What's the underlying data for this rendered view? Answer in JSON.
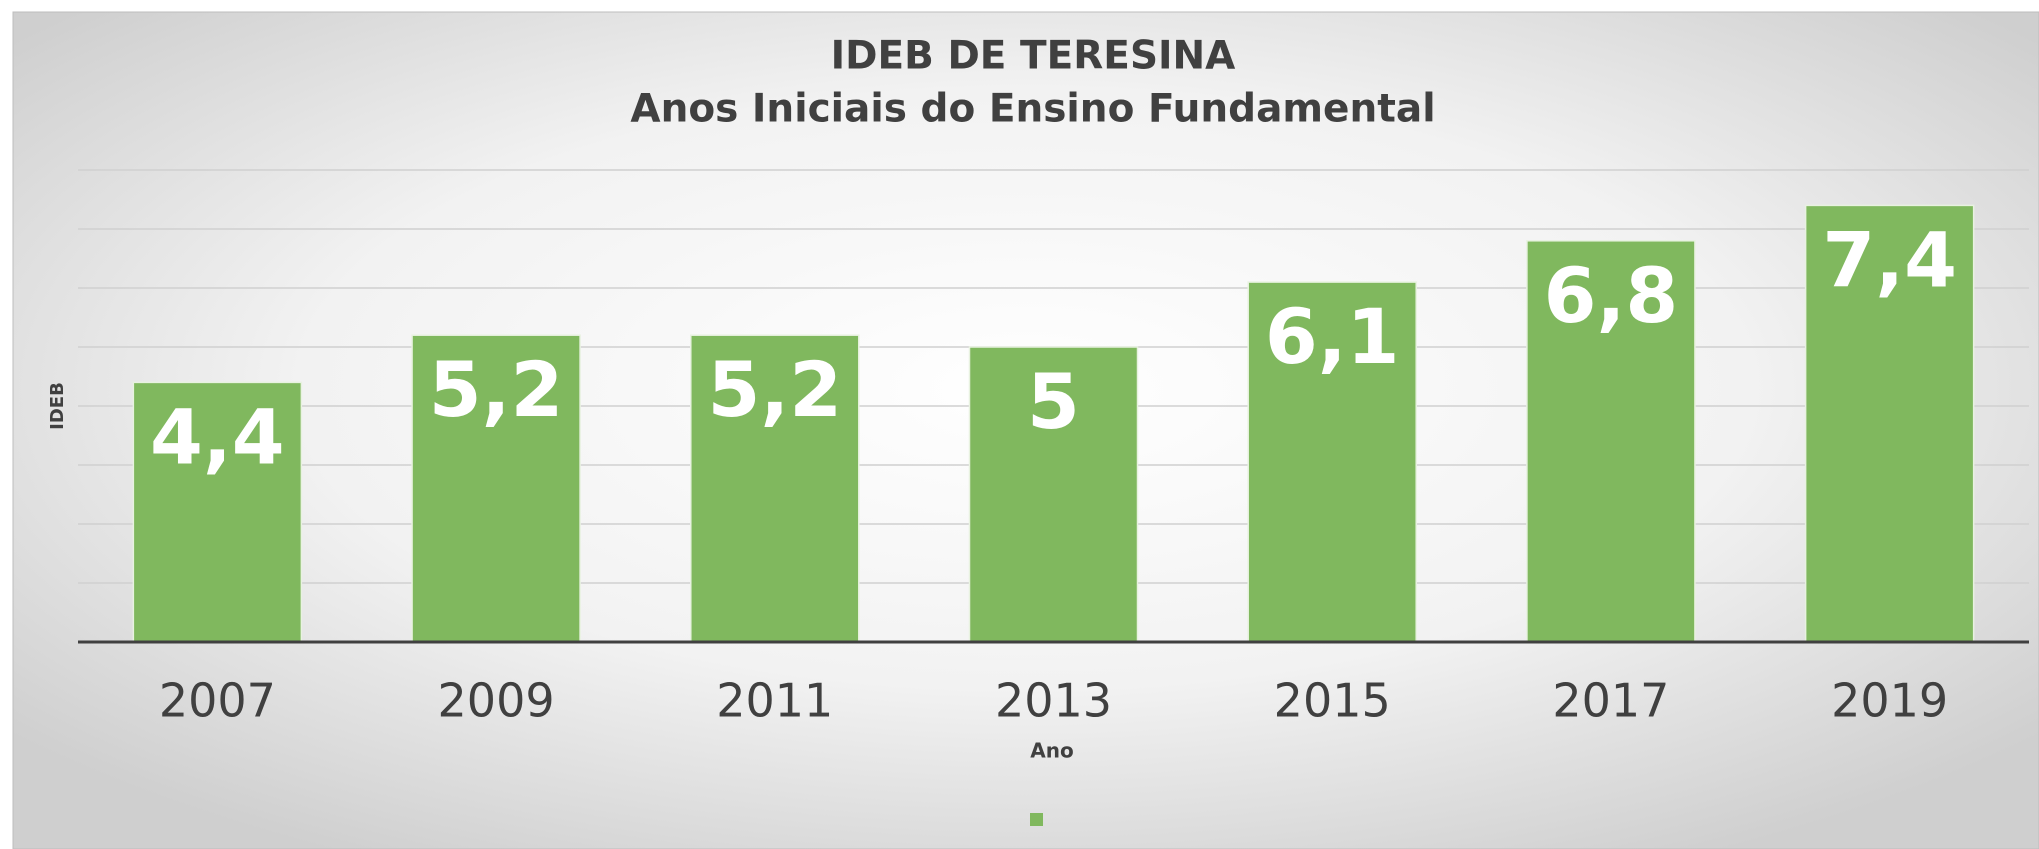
{
  "chart_data": {
    "type": "bar",
    "title": "IDEB DE TERESINA",
    "subtitle": "Anos Iniciais do Ensino Fundamental",
    "x_label": "Ano",
    "y_label": "IDEB",
    "categories": [
      "2007",
      "2009",
      "2011",
      "2013",
      "2015",
      "2017",
      "2019"
    ],
    "values": [
      4.4,
      5.2,
      5.2,
      5,
      6.1,
      6.8,
      7.4
    ],
    "value_labels": [
      "4,4",
      "5,2",
      "5,2",
      "5",
      "6,1",
      "6,8",
      "7,4"
    ],
    "color": "#80b85e",
    "ylim": [
      0,
      8
    ],
    "yticks": [
      0,
      1,
      2,
      3,
      4,
      5,
      6,
      7,
      8
    ],
    "grid": true,
    "legend": "bottom"
  }
}
